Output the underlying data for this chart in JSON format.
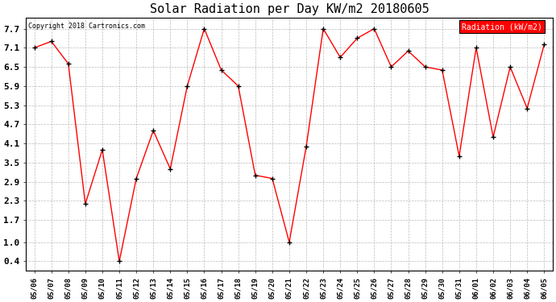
{
  "title": "Solar Radiation per Day KW/m2 20180605",
  "copyright": "Copyright 2018 Cartronics.com",
  "legend_label": "Radiation (kW/m2)",
  "dates": [
    "05/06",
    "05/07",
    "05/08",
    "05/09",
    "05/10",
    "05/11",
    "05/12",
    "05/13",
    "05/14",
    "05/15",
    "05/16",
    "05/17",
    "05/18",
    "05/19",
    "05/20",
    "05/21",
    "05/22",
    "05/23",
    "05/24",
    "05/25",
    "05/26",
    "05/27",
    "05/28",
    "05/29",
    "05/30",
    "05/31",
    "06/01",
    "06/02",
    "06/03",
    "06/04",
    "06/05"
  ],
  "values": [
    7.1,
    7.3,
    6.6,
    2.2,
    3.9,
    0.4,
    3.0,
    4.5,
    3.3,
    5.9,
    7.7,
    6.4,
    5.9,
    3.1,
    3.0,
    1.0,
    4.0,
    7.7,
    6.8,
    7.4,
    7.7,
    6.5,
    7.0,
    6.5,
    6.4,
    3.7,
    7.1,
    4.3,
    6.5,
    5.2,
    7.2
  ],
  "yticks": [
    0.4,
    1.0,
    1.7,
    2.3,
    2.9,
    3.5,
    4.1,
    4.7,
    5.3,
    5.9,
    6.5,
    7.1,
    7.7
  ],
  "ylim": [
    0.1,
    8.05
  ],
  "line_color": "red",
  "marker_color": "black",
  "bg_color": "#ffffff",
  "plot_bg_color": "#ffffff",
  "grid_color": "#bbbbbb",
  "title_fontsize": 11,
  "tick_fontsize": 6.5,
  "ytick_fontsize": 8,
  "legend_bg": "red",
  "legend_text_color": "white",
  "copyright_fontsize": 6
}
